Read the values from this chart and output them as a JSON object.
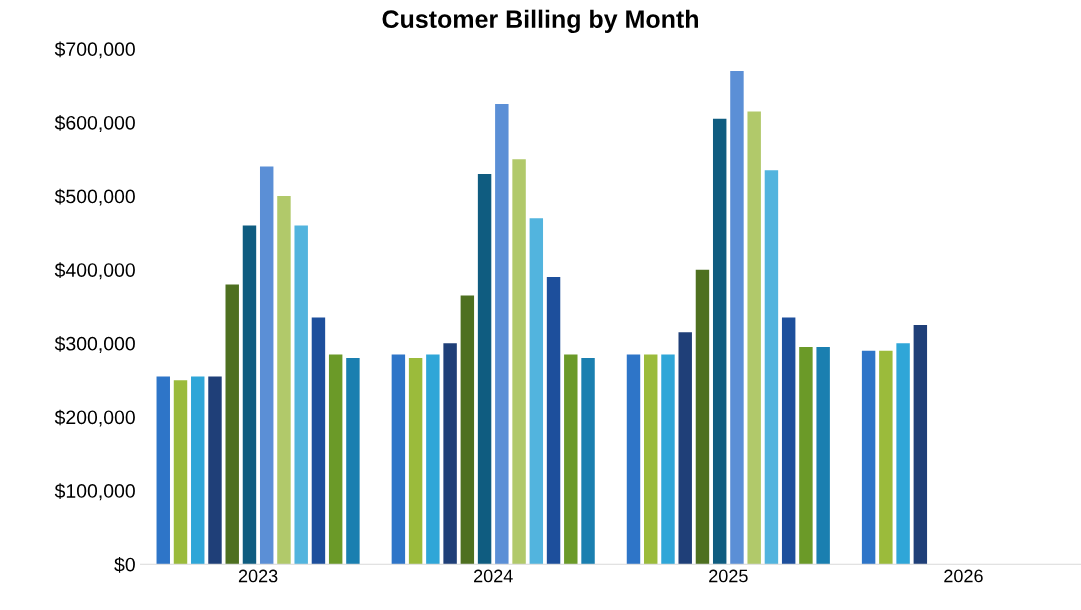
{
  "chart_data": {
    "type": "bar",
    "title": "Customer Billing by Month",
    "categories": [
      "2023",
      "2024",
      "2025",
      "2026"
    ],
    "series": [
      {
        "color": "#2e75c8",
        "values": [
          255000,
          285000,
          285000,
          290000
        ]
      },
      {
        "color": "#9bbb3b",
        "values": [
          250000,
          280000,
          285000,
          290000
        ]
      },
      {
        "color": "#2fa6d8",
        "values": [
          255000,
          285000,
          285000,
          300000
        ]
      },
      {
        "color": "#1f3f78",
        "values": [
          255000,
          300000,
          315000,
          325000
        ]
      },
      {
        "color": "#4e7020",
        "values": [
          380000,
          365000,
          400000,
          null
        ]
      },
      {
        "color": "#0f5c80",
        "values": [
          460000,
          530000,
          605000,
          null
        ]
      },
      {
        "color": "#5b8fd6",
        "values": [
          540000,
          625000,
          670000,
          null
        ]
      },
      {
        "color": "#b1c96a",
        "values": [
          500000,
          550000,
          615000,
          null
        ]
      },
      {
        "color": "#52b4de",
        "values": [
          460000,
          470000,
          535000,
          null
        ]
      },
      {
        "color": "#1d4f9c",
        "values": [
          335000,
          390000,
          335000,
          null
        ]
      },
      {
        "color": "#6b9a28",
        "values": [
          285000,
          285000,
          295000,
          null
        ]
      },
      {
        "color": "#1a7fb0",
        "values": [
          280000,
          280000,
          295000,
          null
        ]
      }
    ],
    "ylim": [
      0,
      700000
    ],
    "yticks": [
      {
        "value": 0,
        "label": "$0"
      },
      {
        "value": 100000,
        "label": "$100,000"
      },
      {
        "value": 200000,
        "label": "$200,000"
      },
      {
        "value": 300000,
        "label": "$300,000"
      },
      {
        "value": 400000,
        "label": "$400,000"
      },
      {
        "value": 500000,
        "label": "$500,000"
      },
      {
        "value": 600000,
        "label": "$600,000"
      },
      {
        "value": 700000,
        "label": "$700,000"
      }
    ],
    "grid": false
  }
}
